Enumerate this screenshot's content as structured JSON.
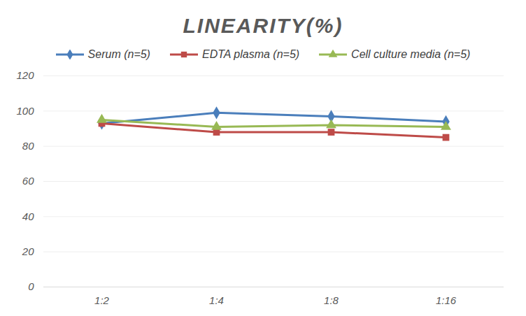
{
  "chart_data": {
    "type": "line",
    "title": "LINEARITY(%)",
    "categories": [
      "1:2",
      "1:4",
      "1:8",
      "1:16"
    ],
    "series": [
      {
        "name": "Serum (n=5)",
        "color": "#4a7ebb",
        "marker": "diamond",
        "values": [
          93,
          99,
          97,
          94
        ]
      },
      {
        "name": "EDTA plasma (n=5)",
        "color": "#be4b48",
        "marker": "square",
        "values": [
          93,
          88,
          88,
          85
        ]
      },
      {
        "name": "Cell culture media (n=5)",
        "color": "#98b954",
        "marker": "triangle",
        "values": [
          95,
          91,
          92,
          91
        ]
      }
    ],
    "ylim": [
      0,
      120
    ],
    "yticks": [
      0,
      20,
      40,
      60,
      80,
      100,
      120
    ],
    "grid": true,
    "legend": "top"
  }
}
